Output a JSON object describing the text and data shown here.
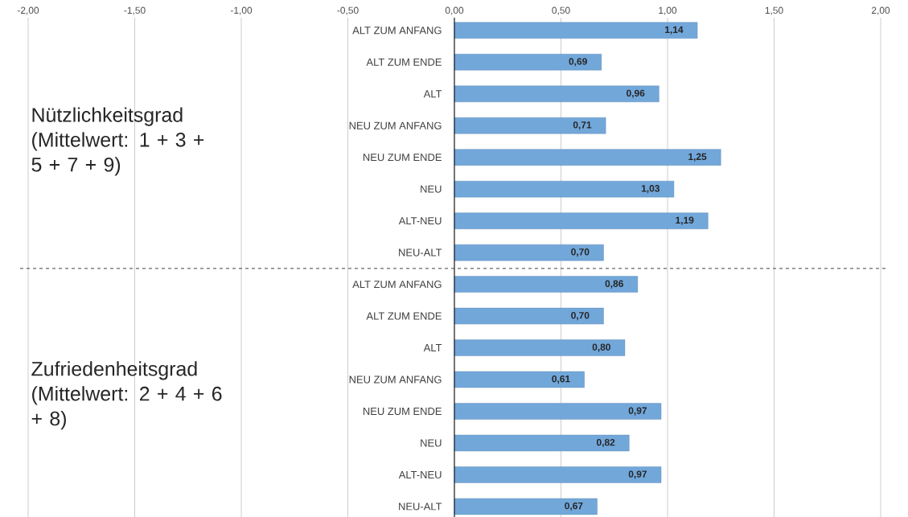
{
  "chart_data": {
    "type": "bar",
    "orientation": "horizontal",
    "categories": [
      "ALT ZUM ANFANG",
      "ALT ZUM ENDE",
      "ALT",
      "NEU ZUM ANFANG",
      "NEU ZUM ENDE",
      "NEU",
      "ALT-NEU",
      "NEU-ALT",
      "ALT ZUM ANFANG",
      "ALT ZUM ENDE",
      "ALT",
      "NEU ZUM ANFANG",
      "NEU ZUM ENDE",
      "NEU",
      "ALT-NEU",
      "NEU-ALT"
    ],
    "values": [
      1.14,
      0.69,
      0.96,
      0.71,
      1.25,
      1.03,
      1.19,
      0.7,
      0.86,
      0.7,
      0.8,
      0.61,
      0.97,
      0.82,
      0.97,
      0.67
    ],
    "value_labels": [
      "1,14",
      "0,69",
      "0,96",
      "0,71",
      "1,25",
      "1,03",
      "1,19",
      "0,70",
      "0,86",
      "0,70",
      "0,80",
      "0,61",
      "0,97",
      "0,82",
      "0,97",
      "0,67"
    ],
    "color": "#72a7da",
    "xlim": [
      -2,
      2
    ],
    "xticks": [
      {
        "value": -2,
        "label": "-2,00"
      },
      {
        "value": -1.5,
        "label": "-1,50"
      },
      {
        "value": -1,
        "label": "-1,00"
      },
      {
        "value": -0.5,
        "label": "-0,50"
      },
      {
        "value": 0,
        "label": "0,00"
      },
      {
        "value": 0.5,
        "label": "0,50"
      },
      {
        "value": 1,
        "label": "1,00"
      },
      {
        "value": 1.5,
        "label": "1,50"
      },
      {
        "value": 2,
        "label": "2,00"
      }
    ],
    "grid": "x",
    "annotations": [
      "Nützlichkeitsgrad (Mittelwert: 1 + 3 + 5 + 7 + 9)",
      "Zufriedenheitsgrad (Mittelwert: 2 + 4 + 6 + 8)"
    ]
  }
}
